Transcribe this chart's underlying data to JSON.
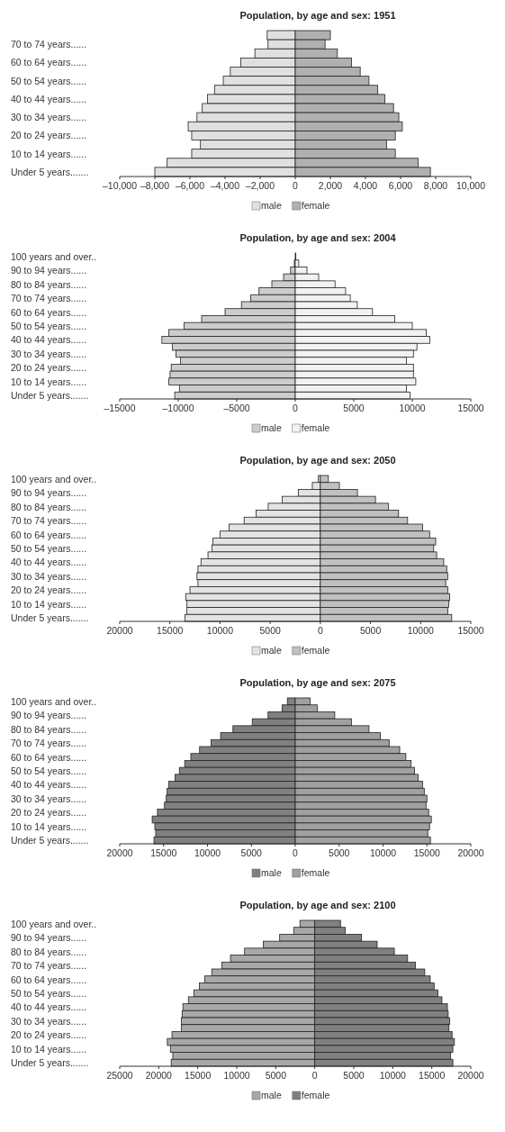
{
  "chart_data": [
    {
      "type": "bar",
      "orientation": "horizontal",
      "stacked": true,
      "title": "Population, by age and sex: 1951",
      "legend": "bottom",
      "grid": false,
      "categories": [
        null,
        "70 to 74 years......",
        null,
        "60 to 64 years......",
        null,
        "50 to 54 years......",
        null,
        "40 to 44 years......",
        null,
        "30 to 34 years......",
        null,
        "20 to 24 years......",
        null,
        "10 to 14 years......",
        null,
        "Under 5 years......."
      ],
      "xlim": [
        -10000,
        10000
      ],
      "xticks": [
        {
          "value": -10000,
          "label": "–10,000"
        },
        {
          "value": -8000,
          "label": "–8,000"
        },
        {
          "value": -6000,
          "label": "–6,000"
        },
        {
          "value": -4000,
          "label": "–4,000"
        },
        {
          "value": -2000,
          "label": "–2,000"
        },
        {
          "value": 0,
          "label": "0"
        },
        {
          "value": 2000,
          "label": "2,000"
        },
        {
          "value": 4000,
          "label": "4,000"
        },
        {
          "value": 6000,
          "label": "6,000"
        },
        {
          "value": 8000,
          "label": "8,000"
        },
        {
          "value": 10000,
          "label": "10,000"
        }
      ],
      "series": [
        {
          "name": "male",
          "color": "#e0e0e0",
          "values": [
            -1600,
            -1550,
            -2300,
            -3100,
            -3700,
            -4100,
            -4600,
            -5000,
            -5300,
            -5600,
            -6100,
            -5900,
            -5400,
            -5900,
            -7300,
            -8000
          ]
        },
        {
          "name": "female",
          "color": "#b0b0b0",
          "values": [
            2000,
            1700,
            2400,
            3200,
            3700,
            4200,
            4700,
            5100,
            5600,
            5900,
            6100,
            5700,
            5200,
            5700,
            7000,
            7700
          ]
        }
      ]
    },
    {
      "type": "bar",
      "orientation": "horizontal",
      "stacked": true,
      "title": "Population, by age and sex: 2004",
      "legend": "bottom",
      "grid": false,
      "categories": [
        "100 years and over..",
        null,
        "90 to 94 years......",
        null,
        "80 to 84 years......",
        null,
        "70 to 74 years......",
        null,
        "60 to 64 years......",
        null,
        "50 to 54 years......",
        null,
        "40 to 44 years......",
        null,
        "30 to 34 years......",
        null,
        "20 to 24 years......",
        null,
        "10 to 14 years......",
        null,
        "Under 5 years......."
      ],
      "xlim": [
        -15000,
        15000
      ],
      "xticks": [
        {
          "value": -15000,
          "label": "–15000"
        },
        {
          "value": -10000,
          "label": "–10000"
        },
        {
          "value": -5000,
          "label": "–5000"
        },
        0,
        5000,
        10000,
        15000
      ],
      "series": [
        {
          "name": "male",
          "color": "#cccccc",
          "values": [
            null,
            -80,
            -400,
            -1000,
            -2000,
            -3100,
            -3800,
            -4600,
            -6000,
            -8000,
            -9500,
            -10800,
            -11400,
            -10500,
            -10200,
            -9800,
            -10600,
            -10700,
            -10800,
            -9900,
            -10300
          ]
        },
        {
          "name": "female",
          "color": "#f2f2f2",
          "values": [
            50,
            300,
            1000,
            2000,
            3400,
            4300,
            4700,
            5300,
            6600,
            8500,
            10000,
            11200,
            11500,
            10400,
            10100,
            9500,
            10100,
            10100,
            10300,
            9500,
            9800
          ]
        }
      ]
    },
    {
      "type": "bar",
      "orientation": "horizontal",
      "stacked": true,
      "title": "Population, by age and sex: 2050",
      "legend": "bottom",
      "grid": false,
      "categories": [
        "100 years and over..",
        null,
        "90 to 94 years......",
        null,
        "80 to 84 years......",
        null,
        "70 to 74 years......",
        null,
        "60 to 64 years......",
        null,
        "50 to 54 years......",
        null,
        "40 to 44 years......",
        null,
        "30 to 34 years......",
        null,
        "20 to 24 years......",
        null,
        "10 to 14 years......",
        null,
        "Under 5 years......."
      ],
      "xlim": [
        -20000,
        15000
      ],
      "xticks": [
        {
          "value": -20000,
          "label": "20000"
        },
        {
          "value": -15000,
          "label": "15000"
        },
        {
          "value": -10000,
          "label": "10000"
        },
        {
          "value": -5000,
          "label": "5000"
        },
        0,
        5000,
        10000,
        15000
      ],
      "series": [
        {
          "name": "male",
          "color": "#e3e3e3",
          "values": [
            -200,
            -800,
            -2200,
            -3800,
            -5200,
            -6400,
            -7600,
            -9100,
            -10000,
            -10700,
            -10800,
            -11200,
            -11900,
            -12200,
            -12300,
            -12200,
            -13000,
            -13400,
            -13300,
            -13300,
            -13500
          ]
        },
        {
          "name": "female",
          "color": "#c0c0c0",
          "values": [
            800,
            1900,
            3700,
            5500,
            6800,
            7800,
            8700,
            10200,
            10900,
            11500,
            11300,
            11600,
            12300,
            12600,
            12700,
            12500,
            12700,
            12900,
            12800,
            12700,
            13100
          ]
        }
      ]
    },
    {
      "type": "bar",
      "orientation": "horizontal",
      "stacked": true,
      "title": "Population, by age and sex: 2075",
      "legend": "bottom",
      "grid": false,
      "categories": [
        "100 years and over..",
        null,
        "90 to 94 years......",
        null,
        "80 to 84 years......",
        null,
        "70 to 74 years......",
        null,
        "60 to 64 years......",
        null,
        "50 to 54 years......",
        null,
        "40 to 44 years......",
        null,
        "30 to 34 years......",
        null,
        "20 to 24 years......",
        null,
        "10 to 14 years......",
        null,
        "Under 5 years......."
      ],
      "xlim": [
        -20000,
        20000
      ],
      "xticks": [
        {
          "value": -20000,
          "label": "20000"
        },
        {
          "value": -15000,
          "label": "15000"
        },
        {
          "value": -10000,
          "label": "10000"
        },
        {
          "value": -5000,
          "label": "5000"
        },
        0,
        5000,
        10000,
        15000,
        20000
      ],
      "series": [
        {
          "name": "male",
          "color": "#808080",
          "values": [
            -900,
            -1500,
            -3100,
            -4900,
            -7100,
            -8500,
            -9600,
            -10900,
            -11900,
            -12600,
            -13200,
            -13700,
            -14400,
            -14600,
            -14700,
            -14900,
            -15700,
            -16300,
            -16000,
            -15900,
            -16100
          ]
        },
        {
          "name": "female",
          "color": "#a0a0a0",
          "values": [
            1700,
            2500,
            4500,
            6400,
            8400,
            9700,
            10700,
            11900,
            12600,
            13200,
            13600,
            14000,
            14500,
            14700,
            15000,
            14900,
            15200,
            15500,
            15300,
            15100,
            15400
          ]
        }
      ]
    },
    {
      "type": "bar",
      "orientation": "horizontal",
      "stacked": true,
      "title": "Population, by age and sex: 2100",
      "legend": "bottom",
      "grid": false,
      "categories": [
        "100 years and over..",
        null,
        "90 to 94 years......",
        null,
        "80 to 84 years......",
        null,
        "70 to 74 years......",
        null,
        "60 to 64 years......",
        null,
        "50 to 54 years......",
        null,
        "40 to 44 years......",
        null,
        "30 to 34 years......",
        null,
        "20 to 24 years......",
        null,
        "10 to 14 years......",
        null,
        "Under 5 years......."
      ],
      "xlim": [
        -25000,
        20000
      ],
      "xticks": [
        {
          "value": -25000,
          "label": "25000"
        },
        {
          "value": -20000,
          "label": "20000"
        },
        {
          "value": -15000,
          "label": "15000"
        },
        {
          "value": -10000,
          "label": "10000"
        },
        {
          "value": -5000,
          "label": "5000"
        },
        0,
        5000,
        10000,
        15000,
        20000
      ],
      "series": [
        {
          "name": "male",
          "color": "#a8a8a8",
          "values": [
            -1900,
            -2700,
            -4500,
            -6600,
            -9000,
            -10800,
            -11900,
            -13200,
            -14100,
            -14800,
            -15500,
            -16200,
            -16900,
            -17000,
            -17100,
            -17100,
            -18300,
            -18900,
            -18500,
            -18200,
            -18400
          ]
        },
        {
          "name": "female",
          "color": "#808080",
          "values": [
            3300,
            3900,
            6000,
            8000,
            10200,
            11900,
            12900,
            14100,
            14800,
            15300,
            15800,
            16300,
            17000,
            17100,
            17300,
            17200,
            17600,
            17900,
            17700,
            17400,
            17700
          ]
        }
      ]
    }
  ]
}
